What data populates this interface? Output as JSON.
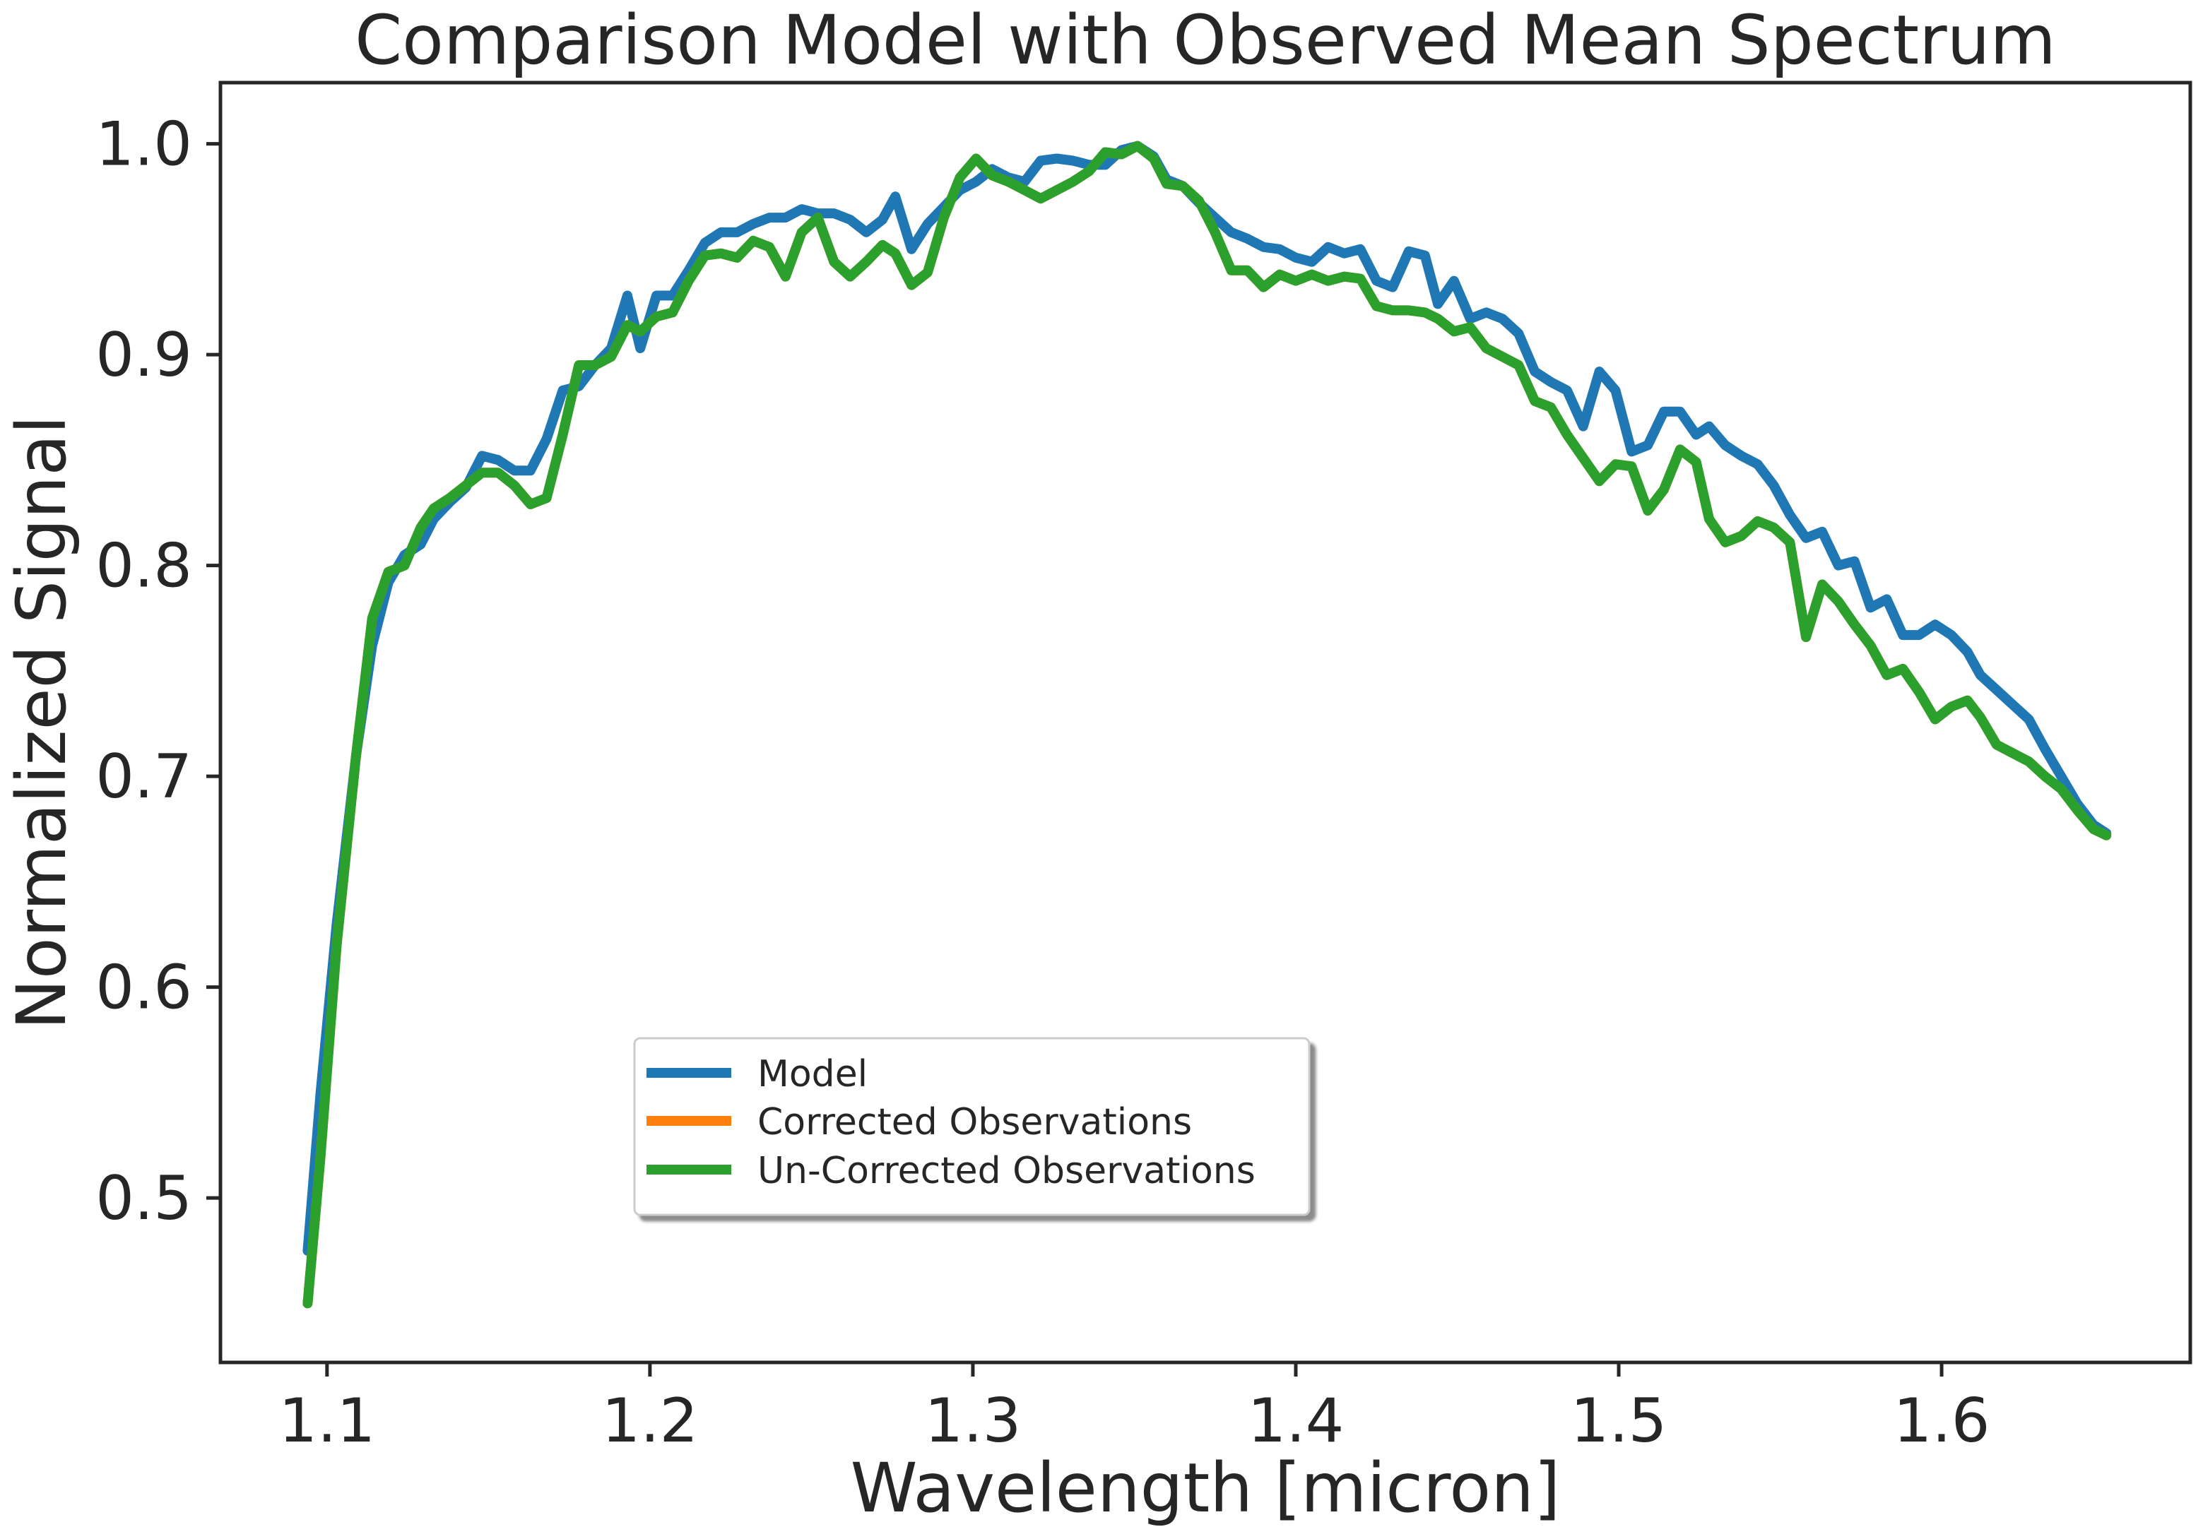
{
  "chart_data": {
    "type": "line",
    "title": "Comparison Model with Observed Mean Spectrum",
    "xlabel": "Wavelength [micron]",
    "ylabel": "Normalized Signal",
    "xlim": [
      1.067,
      1.677
    ],
    "ylim": [
      0.422,
      1.029
    ],
    "xticks": [
      "1.1",
      "1.2",
      "1.3",
      "1.4",
      "1.5",
      "1.6"
    ],
    "xtick_values": [
      1.1,
      1.2,
      1.3,
      1.4,
      1.5,
      1.6
    ],
    "yticks": [
      "0.5",
      "0.6",
      "0.7",
      "0.8",
      "0.9",
      "1.0"
    ],
    "ytick_values": [
      0.5,
      0.6,
      0.7,
      0.8,
      0.9,
      1.0
    ],
    "grid": false,
    "legend_position": "lower-center",
    "series": [
      {
        "name": "Model",
        "color": "#1f77b4",
        "x": [
          1.094,
          1.098,
          1.103,
          1.109,
          1.114,
          1.119,
          1.124,
          1.129,
          1.133,
          1.138,
          1.143,
          1.148,
          1.153,
          1.158,
          1.163,
          1.168,
          1.173,
          1.178,
          1.183,
          1.188,
          1.193,
          1.197,
          1.202,
          1.207,
          1.212,
          1.217,
          1.222,
          1.227,
          1.232,
          1.237,
          1.242,
          1.247,
          1.252,
          1.257,
          1.262,
          1.267,
          1.272,
          1.276,
          1.281,
          1.286,
          1.291,
          1.296,
          1.301,
          1.306,
          1.311,
          1.316,
          1.321,
          1.326,
          1.331,
          1.336,
          1.341,
          1.346,
          1.351,
          1.356,
          1.36,
          1.365,
          1.37,
          1.375,
          1.38,
          1.385,
          1.39,
          1.395,
          1.4,
          1.405,
          1.41,
          1.415,
          1.42,
          1.425,
          1.43,
          1.435,
          1.44,
          1.444,
          1.449,
          1.454,
          1.459,
          1.464,
          1.469,
          1.474,
          1.479,
          1.484,
          1.489,
          1.494,
          1.499,
          1.504,
          1.509,
          1.514,
          1.519,
          1.524,
          1.528,
          1.533,
          1.538,
          1.543,
          1.548,
          1.553,
          1.558,
          1.563,
          1.568,
          1.573,
          1.578,
          1.583,
          1.588,
          1.593,
          1.598,
          1.603,
          1.608,
          1.612,
          1.617,
          1.622,
          1.627,
          1.632,
          1.637,
          1.642,
          1.647,
          1.651
        ],
        "y": [
          0.475,
          0.55,
          0.63,
          0.71,
          0.762,
          0.792,
          0.805,
          0.81,
          0.822,
          0.83,
          0.837,
          0.852,
          0.85,
          0.845,
          0.845,
          0.86,
          0.883,
          0.885,
          0.895,
          0.903,
          0.928,
          0.903,
          0.928,
          0.928,
          0.94,
          0.953,
          0.958,
          0.958,
          0.962,
          0.965,
          0.965,
          0.969,
          0.967,
          0.967,
          0.964,
          0.958,
          0.964,
          0.975,
          0.95,
          0.962,
          0.97,
          0.978,
          0.982,
          0.988,
          0.984,
          0.982,
          0.992,
          0.993,
          0.992,
          0.99,
          0.99,
          0.997,
          0.999,
          0.994,
          0.983,
          0.98,
          0.972,
          0.965,
          0.958,
          0.955,
          0.951,
          0.95,
          0.946,
          0.944,
          0.951,
          0.948,
          0.95,
          0.935,
          0.932,
          0.949,
          0.947,
          0.924,
          0.935,
          0.917,
          0.92,
          0.917,
          0.91,
          0.892,
          0.887,
          0.883,
          0.866,
          0.892,
          0.883,
          0.854,
          0.857,
          0.873,
          0.873,
          0.862,
          0.866,
          0.857,
          0.852,
          0.848,
          0.838,
          0.824,
          0.813,
          0.816,
          0.8,
          0.802,
          0.78,
          0.784,
          0.767,
          0.767,
          0.772,
          0.767,
          0.759,
          0.748,
          0.741,
          0.734,
          0.727,
          0.713,
          0.7,
          0.687,
          0.677,
          0.673
        ]
      },
      {
        "name": "Corrected Observations",
        "color": "#ff7f0e",
        "x": [
          1.094,
          1.098,
          1.103,
          1.109,
          1.114,
          1.119,
          1.124,
          1.129,
          1.133,
          1.138,
          1.143,
          1.148,
          1.153,
          1.158,
          1.163,
          1.168,
          1.173,
          1.178,
          1.183,
          1.188,
          1.193,
          1.197,
          1.202,
          1.207,
          1.212,
          1.217,
          1.222,
          1.227,
          1.232,
          1.237,
          1.242,
          1.247,
          1.252,
          1.257,
          1.262,
          1.267,
          1.272,
          1.276,
          1.281,
          1.286,
          1.291,
          1.296,
          1.301,
          1.306,
          1.311,
          1.316,
          1.321,
          1.326,
          1.331,
          1.336,
          1.341,
          1.346,
          1.351,
          1.356,
          1.36,
          1.365,
          1.37,
          1.375,
          1.38,
          1.385,
          1.39,
          1.395,
          1.4,
          1.405,
          1.41,
          1.415,
          1.42,
          1.425,
          1.43,
          1.435,
          1.44,
          1.444,
          1.449,
          1.454,
          1.459,
          1.464,
          1.469,
          1.474,
          1.479,
          1.484,
          1.489,
          1.494,
          1.499,
          1.504,
          1.509,
          1.514,
          1.519,
          1.524,
          1.528,
          1.533,
          1.538,
          1.543,
          1.548,
          1.553,
          1.558,
          1.563,
          1.568,
          1.573,
          1.578,
          1.583,
          1.588,
          1.593,
          1.598,
          1.603,
          1.608,
          1.612,
          1.617,
          1.622,
          1.627,
          1.632,
          1.637,
          1.642,
          1.647,
          1.651
        ],
        "y": [
          0.45,
          0.52,
          0.62,
          0.71,
          0.775,
          0.797,
          0.8,
          0.818,
          0.827,
          0.832,
          0.838,
          0.844,
          0.844,
          0.838,
          0.829,
          0.832,
          0.862,
          0.895,
          0.895,
          0.899,
          0.914,
          0.911,
          0.918,
          0.92,
          0.935,
          0.947,
          0.948,
          0.946,
          0.954,
          0.951,
          0.937,
          0.958,
          0.965,
          0.944,
          0.937,
          0.944,
          0.952,
          0.948,
          0.933,
          0.939,
          0.965,
          0.984,
          0.993,
          0.985,
          0.982,
          0.978,
          0.974,
          0.978,
          0.982,
          0.987,
          0.996,
          0.995,
          0.999,
          0.993,
          0.981,
          0.98,
          0.973,
          0.958,
          0.94,
          0.94,
          0.932,
          0.938,
          0.935,
          0.938,
          0.935,
          0.937,
          0.936,
          0.923,
          0.921,
          0.921,
          0.92,
          0.917,
          0.911,
          0.913,
          0.903,
          0.899,
          0.895,
          0.878,
          0.875,
          0.862,
          0.851,
          0.84,
          0.848,
          0.847,
          0.826,
          0.836,
          0.855,
          0.849,
          0.822,
          0.811,
          0.814,
          0.821,
          0.818,
          0.811,
          0.766,
          0.791,
          0.783,
          0.772,
          0.762,
          0.748,
          0.751,
          0.74,
          0.727,
          0.733,
          0.736,
          0.728,
          0.715,
          0.711,
          0.707,
          0.7,
          0.694,
          0.684,
          0.675,
          0.672
        ]
      },
      {
        "name": "Un-Corrected Observations",
        "color": "#2ca02c",
        "x": [
          1.094,
          1.098,
          1.103,
          1.109,
          1.114,
          1.119,
          1.124,
          1.129,
          1.133,
          1.138,
          1.143,
          1.148,
          1.153,
          1.158,
          1.163,
          1.168,
          1.173,
          1.178,
          1.183,
          1.188,
          1.193,
          1.197,
          1.202,
          1.207,
          1.212,
          1.217,
          1.222,
          1.227,
          1.232,
          1.237,
          1.242,
          1.247,
          1.252,
          1.257,
          1.262,
          1.267,
          1.272,
          1.276,
          1.281,
          1.286,
          1.291,
          1.296,
          1.301,
          1.306,
          1.311,
          1.316,
          1.321,
          1.326,
          1.331,
          1.336,
          1.341,
          1.346,
          1.351,
          1.356,
          1.36,
          1.365,
          1.37,
          1.375,
          1.38,
          1.385,
          1.39,
          1.395,
          1.4,
          1.405,
          1.41,
          1.415,
          1.42,
          1.425,
          1.43,
          1.435,
          1.44,
          1.444,
          1.449,
          1.454,
          1.459,
          1.464,
          1.469,
          1.474,
          1.479,
          1.484,
          1.489,
          1.494,
          1.499,
          1.504,
          1.509,
          1.514,
          1.519,
          1.524,
          1.528,
          1.533,
          1.538,
          1.543,
          1.548,
          1.553,
          1.558,
          1.563,
          1.568,
          1.573,
          1.578,
          1.583,
          1.588,
          1.593,
          1.598,
          1.603,
          1.608,
          1.612,
          1.617,
          1.622,
          1.627,
          1.632,
          1.637,
          1.642,
          1.647,
          1.651
        ],
        "y": [
          0.45,
          0.52,
          0.62,
          0.71,
          0.775,
          0.797,
          0.8,
          0.818,
          0.827,
          0.832,
          0.838,
          0.844,
          0.844,
          0.838,
          0.829,
          0.832,
          0.862,
          0.895,
          0.895,
          0.899,
          0.914,
          0.911,
          0.918,
          0.92,
          0.935,
          0.947,
          0.948,
          0.946,
          0.954,
          0.951,
          0.937,
          0.958,
          0.965,
          0.944,
          0.937,
          0.944,
          0.952,
          0.948,
          0.933,
          0.939,
          0.965,
          0.984,
          0.993,
          0.985,
          0.982,
          0.978,
          0.974,
          0.978,
          0.982,
          0.987,
          0.996,
          0.995,
          0.999,
          0.993,
          0.981,
          0.98,
          0.973,
          0.958,
          0.94,
          0.94,
          0.932,
          0.938,
          0.935,
          0.938,
          0.935,
          0.937,
          0.936,
          0.923,
          0.921,
          0.921,
          0.92,
          0.917,
          0.911,
          0.913,
          0.903,
          0.899,
          0.895,
          0.878,
          0.875,
          0.862,
          0.851,
          0.84,
          0.848,
          0.847,
          0.826,
          0.836,
          0.855,
          0.849,
          0.822,
          0.811,
          0.814,
          0.821,
          0.818,
          0.811,
          0.766,
          0.791,
          0.783,
          0.772,
          0.762,
          0.748,
          0.751,
          0.74,
          0.727,
          0.733,
          0.736,
          0.728,
          0.715,
          0.711,
          0.707,
          0.7,
          0.694,
          0.684,
          0.675,
          0.672
        ]
      }
    ]
  }
}
